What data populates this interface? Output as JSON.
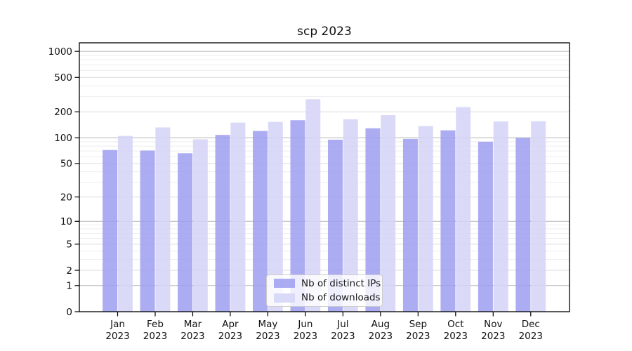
{
  "chart_data": {
    "type": "bar",
    "title": "scp 2023",
    "x_categories": [
      {
        "month": "Jan",
        "year": "2023"
      },
      {
        "month": "Feb",
        "year": "2023"
      },
      {
        "month": "Mar",
        "year": "2023"
      },
      {
        "month": "Apr",
        "year": "2023"
      },
      {
        "month": "May",
        "year": "2023"
      },
      {
        "month": "Jun",
        "year": "2023"
      },
      {
        "month": "Jul",
        "year": "2023"
      },
      {
        "month": "Aug",
        "year": "2023"
      },
      {
        "month": "Sep",
        "year": "2023"
      },
      {
        "month": "Oct",
        "year": "2023"
      },
      {
        "month": "Nov",
        "year": "2023"
      },
      {
        "month": "Dec",
        "year": "2023"
      }
    ],
    "series": [
      {
        "name": "Nb of distinct IPs",
        "color": "#9d9df1",
        "values": [
          72,
          71,
          66,
          108,
          120,
          160,
          95,
          129,
          97,
          122,
          90,
          100
        ]
      },
      {
        "name": "Nb of downloads",
        "color": "#d3d3f7",
        "values": [
          105,
          132,
          96,
          150,
          153,
          280,
          164,
          183,
          137,
          227,
          155,
          156
        ]
      }
    ],
    "yscale": "log1p",
    "yticks": [
      0,
      1,
      2,
      5,
      10,
      20,
      50,
      100,
      200,
      500,
      1000
    ],
    "ylim": [
      0,
      1250
    ],
    "grid": true,
    "legend_position": "lower center"
  }
}
